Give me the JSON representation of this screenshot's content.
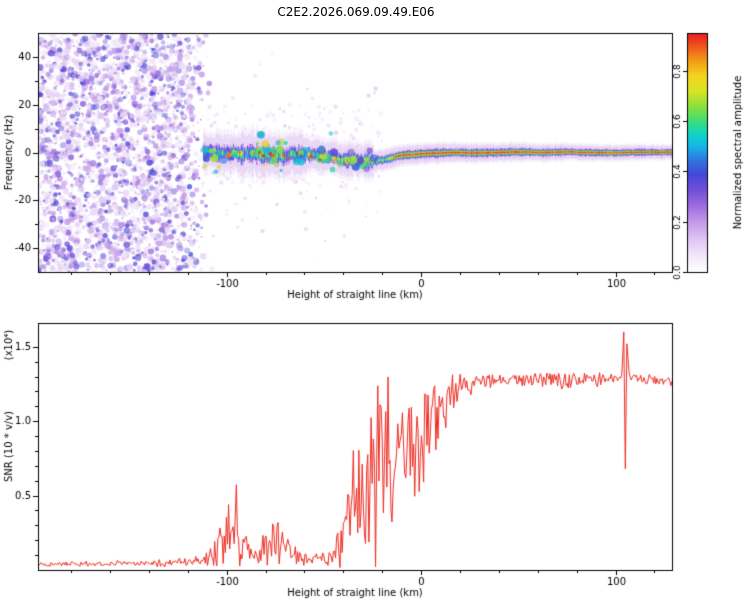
{
  "title": "C2E2.2026.069.09.49.E06",
  "colors": {
    "background": "#ffffff",
    "axis": "#000000",
    "snr_line": "#ee2e24"
  },
  "chart_data": [
    {
      "id": "spectrogram",
      "type": "heatmap",
      "title": "C2E2.2026.069.09.49.E06",
      "xlabel": "Height of straight line (km)",
      "ylabel": "Frequency (Hz)",
      "xlim": [
        -197,
        129
      ],
      "ylim": [
        -50,
        50
      ],
      "xticks": [
        [
          -100,
          "-100"
        ],
        [
          0,
          "0"
        ],
        [
          100,
          "100"
        ]
      ],
      "xminor": 20,
      "yticks": [
        [
          -40,
          "-40"
        ],
        [
          -20,
          "-20"
        ],
        [
          0,
          "0"
        ],
        [
          20,
          "20"
        ],
        [
          40,
          "40"
        ]
      ],
      "yminor": 10,
      "colorbar": {
        "label": "Normalized spectral amplitude",
        "ticks": [
          [
            0,
            "0.0"
          ],
          [
            0.2,
            "0.2"
          ],
          [
            0.4,
            "0.4"
          ],
          [
            0.6,
            "0.6"
          ],
          [
            0.8,
            "0.8"
          ]
        ],
        "vmax": 0.95,
        "stops": [
          [
            0.0,
            "#ffffff"
          ],
          [
            0.05,
            "#f6eefb"
          ],
          [
            0.12,
            "#e3cdf4"
          ],
          [
            0.2,
            "#c49ae8"
          ],
          [
            0.27,
            "#9a6ade"
          ],
          [
            0.33,
            "#6f4fd8"
          ],
          [
            0.39,
            "#4448d8"
          ],
          [
            0.45,
            "#2e7ae0"
          ],
          [
            0.5,
            "#17b4e8"
          ],
          [
            0.55,
            "#10d4c8"
          ],
          [
            0.6,
            "#3cdc78"
          ],
          [
            0.66,
            "#8ce03c"
          ],
          [
            0.72,
            "#d8e426"
          ],
          [
            0.78,
            "#f4d41e"
          ],
          [
            0.84,
            "#f49c16"
          ],
          [
            0.9,
            "#f0541c"
          ],
          [
            0.95,
            "#e81e20"
          ],
          [
            1.0,
            "#c81464"
          ]
        ]
      },
      "features": {
        "noise_field": {
          "x_start": -197,
          "x_fade_start": -122,
          "x_end": -106,
          "freq_span": [
            -50,
            50
          ],
          "value_range": [
            0.06,
            0.4
          ],
          "count": 3000,
          "seed": 11
        },
        "speckle": {
          "count": 260,
          "seed": 9
        },
        "band": {
          "x_start": -112,
          "x_end": 129,
          "center_hz": 0,
          "wander_hz": 5,
          "halfwidth_hz": [
            7.5,
            2.2
          ],
          "core_value_left": [
            0.45,
            0.8
          ],
          "core_value_right": 0.96,
          "red_core_from_km": -14,
          "seed": 5
        }
      }
    },
    {
      "id": "snr",
      "type": "line",
      "xlabel": "Height of straight line (km)",
      "ylabel": "SNR (10 * v/v)",
      "scale_label": "(x10⁴)",
      "xlim": [
        -197,
        129
      ],
      "ylim": [
        0,
        1.66
      ],
      "xticks": [
        [
          -100,
          "-100"
        ],
        [
          0,
          "0"
        ],
        [
          100,
          "100"
        ]
      ],
      "xminor": 20,
      "yticks": [
        [
          0.5,
          "0.5"
        ],
        [
          1.0,
          "1.0"
        ],
        [
          1.5,
          "1.5"
        ]
      ],
      "yminor": 0.1,
      "line_color": "#ee2e24",
      "seed": 21,
      "sample_step_km": 0.55,
      "keypoints": [
        [
          -197,
          0.04,
          0.012
        ],
        [
          -165,
          0.042,
          0.014
        ],
        [
          -140,
          0.046,
          0.018
        ],
        [
          -122,
          0.052,
          0.022
        ],
        [
          -112,
          0.065,
          0.035
        ],
        [
          -104,
          0.14,
          0.1
        ],
        [
          -99,
          0.26,
          0.19
        ],
        [
          -95,
          0.29,
          0.2
        ],
        [
          -91,
          0.17,
          0.11
        ],
        [
          -87,
          0.1,
          0.05
        ],
        [
          -83,
          0.12,
          0.08
        ],
        [
          -78,
          0.2,
          0.15
        ],
        [
          -73,
          0.25,
          0.18
        ],
        [
          -68,
          0.15,
          0.09
        ],
        [
          -63,
          0.08,
          0.04
        ],
        [
          -56,
          0.07,
          0.03
        ],
        [
          -49,
          0.08,
          0.04
        ],
        [
          -44,
          0.11,
          0.06
        ],
        [
          -40,
          0.2,
          0.15
        ],
        [
          -36,
          0.4,
          0.3
        ],
        [
          -32,
          0.52,
          0.38
        ],
        [
          -28,
          0.6,
          0.44
        ],
        [
          -24,
          0.72,
          0.5
        ],
        [
          -20,
          0.85,
          0.52
        ],
        [
          -17,
          1.0,
          0.42
        ],
        [
          -15,
          0.6,
          0.35
        ],
        [
          -12,
          0.75,
          0.33
        ],
        [
          -9,
          0.8,
          0.3
        ],
        [
          -5,
          0.85,
          0.3
        ],
        [
          -1,
          0.9,
          0.27
        ],
        [
          3,
          0.95,
          0.24
        ],
        [
          7,
          1.0,
          0.22
        ],
        [
          11,
          1.05,
          0.18
        ],
        [
          15,
          1.12,
          0.14
        ],
        [
          19,
          1.18,
          0.1
        ],
        [
          24,
          1.24,
          0.06
        ],
        [
          29,
          1.27,
          0.04
        ],
        [
          40,
          1.28,
          0.035
        ],
        [
          52,
          1.27,
          0.035
        ],
        [
          63,
          1.29,
          0.045
        ],
        [
          74,
          1.27,
          0.05
        ],
        [
          84,
          1.28,
          0.045
        ],
        [
          94,
          1.28,
          0.035
        ],
        [
          101,
          1.29,
          0.022
        ],
        [
          103.2,
          1.3,
          0.015
        ],
        [
          104.2,
          1.6,
          0
        ],
        [
          105,
          0.68,
          0
        ],
        [
          105.8,
          1.52,
          0
        ],
        [
          107,
          1.3,
          0.02
        ],
        [
          114,
          1.28,
          0.03
        ],
        [
          129,
          1.27,
          0.03
        ]
      ]
    }
  ]
}
